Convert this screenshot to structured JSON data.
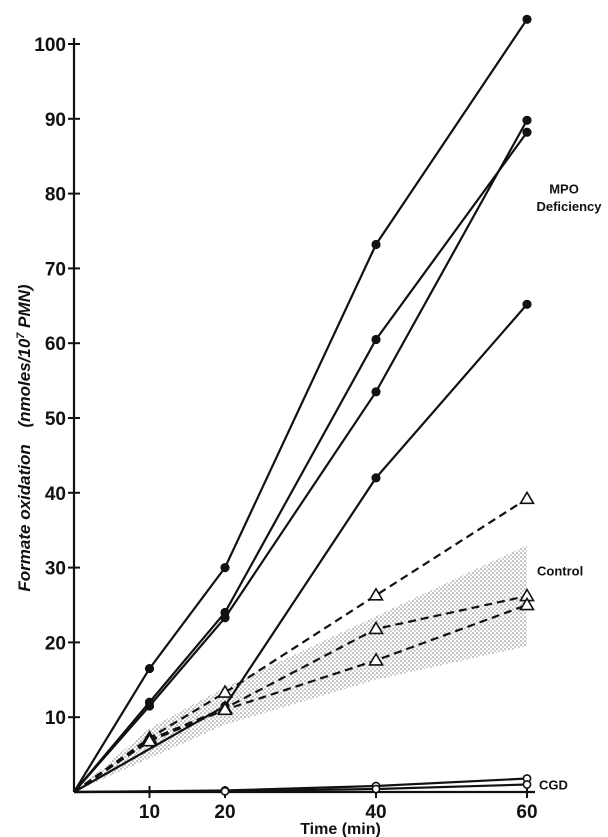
{
  "chart_data": {
    "type": "line",
    "title": "",
    "xlabel": "Time (min)",
    "ylabel_main": "Formate oxidation",
    "ylabel_unit_pre": "(nmoles/10",
    "ylabel_unit_sup": "7",
    "ylabel_unit_post": " PMN)",
    "xlim": [
      0,
      60
    ],
    "ylim": [
      0,
      100
    ],
    "xticks": [
      10,
      20,
      40,
      60
    ],
    "yticks": [
      10,
      20,
      30,
      40,
      50,
      60,
      70,
      80,
      90,
      100
    ],
    "grid": false,
    "annotations": [
      {
        "text": "MPO",
        "x": 60,
        "y": 80
      },
      {
        "text": "Deficiency",
        "x": 60,
        "y": 78.5
      },
      {
        "text": "Control",
        "x": 60,
        "y": 29.5
      },
      {
        "text": "CGD",
        "x": 60,
        "y": 1
      }
    ],
    "band": {
      "x": [
        0,
        10,
        20,
        40,
        60
      ],
      "upper": [
        0,
        8.5,
        14,
        23.5,
        33
      ],
      "lower": [
        0,
        4.5,
        9,
        15,
        19.5
      ]
    },
    "series": [
      {
        "group": "MPO Deficiency",
        "marker": "filled-circle",
        "style": "solid",
        "x": [
          0,
          10,
          20,
          40,
          60
        ],
        "y": [
          0,
          16.5,
          30,
          73.2,
          103.3
        ]
      },
      {
        "group": "MPO Deficiency",
        "marker": "filled-circle",
        "style": "solid",
        "x": [
          0,
          10,
          20,
          40,
          60
        ],
        "y": [
          0,
          12,
          24,
          60.5,
          88.2
        ]
      },
      {
        "group": "MPO Deficiency",
        "marker": "filled-circle",
        "style": "solid",
        "x": [
          0,
          10,
          20,
          40,
          60
        ],
        "y": [
          0,
          11.5,
          23.3,
          53.5,
          89.8
        ]
      },
      {
        "group": "MPO Deficiency",
        "marker": "filled-circle",
        "style": "solid",
        "x": [
          0,
          20,
          40,
          60
        ],
        "y": [
          0,
          11.5,
          42,
          65.2
        ]
      },
      {
        "group": "Control",
        "marker": "open-triangle",
        "style": "dashed",
        "x": [
          0,
          10,
          20,
          40,
          60
        ],
        "y": [
          0,
          7.2,
          13.3,
          26.3,
          39.2
        ]
      },
      {
        "group": "Control",
        "marker": "open-triangle",
        "style": "dashed",
        "x": [
          0,
          10,
          20,
          40,
          60
        ],
        "y": [
          0,
          7,
          11.2,
          21.8,
          26.2
        ]
      },
      {
        "group": "Control",
        "marker": "open-triangle",
        "style": "dashed",
        "x": [
          0,
          10,
          20,
          40,
          60
        ],
        "y": [
          0,
          6.8,
          11,
          17.6,
          25
        ]
      },
      {
        "group": "CGD",
        "marker": "open-circle",
        "style": "solid",
        "x": [
          0,
          20,
          40,
          60
        ],
        "y": [
          0,
          0.2,
          0.8,
          1.8
        ]
      },
      {
        "group": "CGD",
        "marker": "open-circle",
        "style": "solid",
        "x": [
          0,
          20,
          40,
          60
        ],
        "y": [
          0,
          0.1,
          0.4,
          1.0
        ]
      }
    ]
  }
}
